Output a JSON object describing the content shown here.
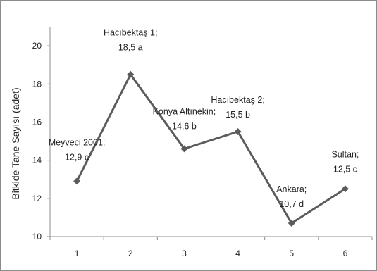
{
  "chart_data": {
    "type": "line",
    "title": "",
    "xlabel": "",
    "ylabel": "Bitkide Tane Sayısı (adet)",
    "categories": [
      "1",
      "2",
      "3",
      "4",
      "5",
      "6"
    ],
    "yticks": [
      "10",
      "12",
      "14",
      "16",
      "18",
      "20"
    ],
    "ylim": [
      10,
      21
    ],
    "grid": false,
    "legend": "none",
    "series": [
      {
        "values": [
          12.9,
          18.5,
          14.6,
          15.5,
          10.7,
          12.5
        ],
        "labels": [
          [
            "Meyveci 2001;",
            "12,9 c"
          ],
          [
            "Hacıbektaş 1;",
            "18,5 a"
          ],
          [
            "Konya Altınekin;",
            "14,6 b"
          ],
          [
            "Hacıbektaş 2;",
            "15,5 b"
          ],
          [
            "Ankara;",
            "10,7 d"
          ],
          [
            "Sultan;",
            "12,5 c"
          ]
        ]
      }
    ],
    "colors": {
      "line": "#5b5b5b",
      "marker": "#5b5b5b",
      "axis": "#8c8c8c"
    }
  }
}
